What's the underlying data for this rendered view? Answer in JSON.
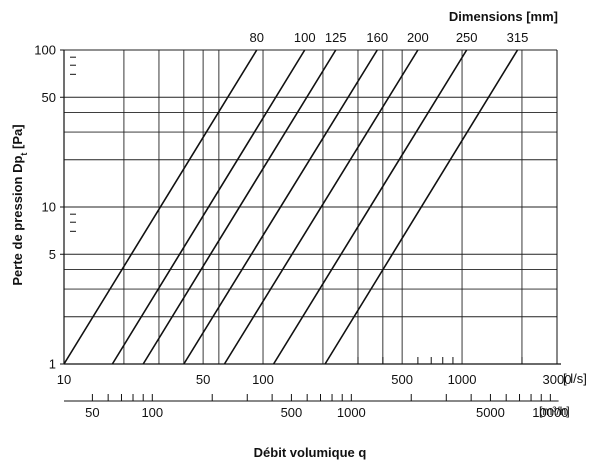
{
  "chart_data": {
    "type": "line",
    "title": "Dimensions  [mm]",
    "xlabel": "Débit volumique  q",
    "ylabel_main": "Perte de pression  Dp",
    "ylabel_sub": "t",
    "ylabel_unit": " [Pa]",
    "x_unit_ls": "[ l/s]",
    "x_unit_m3h": "[m³/h]",
    "scale": "log-log",
    "xlim_ls": [
      10,
      3000
    ],
    "ylim": [
      1,
      100
    ],
    "grid": true,
    "x_ticks_ls": [
      {
        "v": 10,
        "label": "10"
      },
      {
        "v": 50,
        "label": "50"
      },
      {
        "v": 100,
        "label": "100"
      },
      {
        "v": 500,
        "label": "500"
      },
      {
        "v": 1000,
        "label": "1000"
      },
      {
        "v": 3000,
        "label": "3000"
      }
    ],
    "x_minor_ls": [
      300,
      400,
      600,
      700,
      800,
      900,
      2000
    ],
    "x_ticks_m3h": [
      {
        "v": 50,
        "label": "50"
      },
      {
        "v": 100,
        "label": "100"
      },
      {
        "v": 500,
        "label": "500"
      },
      {
        "v": 1000,
        "label": "1000"
      },
      {
        "v": 5000,
        "label": "5000"
      },
      {
        "v": 10000,
        "label": "10000"
      }
    ],
    "x_minor_m3h": [
      60,
      70,
      80,
      90,
      200,
      300,
      400,
      600,
      700,
      800,
      900,
      2000,
      3000,
      4000,
      6000,
      7000,
      8000,
      9000
    ],
    "y_ticks": [
      {
        "v": 1,
        "label": "1"
      },
      {
        "v": 5,
        "label": "5"
      },
      {
        "v": 10,
        "label": "10"
      },
      {
        "v": 50,
        "label": "50"
      },
      {
        "v": 100,
        "label": "100"
      }
    ],
    "series": [
      {
        "name": "80",
        "x_at_1Pa": 10,
        "x_at_100Pa": 93
      },
      {
        "name": "100",
        "x_at_1Pa": 17.5,
        "x_at_100Pa": 162
      },
      {
        "name": "125",
        "x_at_1Pa": 25,
        "x_at_100Pa": 232
      },
      {
        "name": "160",
        "x_at_1Pa": 40,
        "x_at_100Pa": 375
      },
      {
        "name": "200",
        "x_at_1Pa": 64,
        "x_at_100Pa": 600
      },
      {
        "name": "250",
        "x_at_1Pa": 113,
        "x_at_100Pa": 1055
      },
      {
        "name": "315",
        "x_at_1Pa": 205,
        "x_at_100Pa": 1900
      }
    ]
  }
}
